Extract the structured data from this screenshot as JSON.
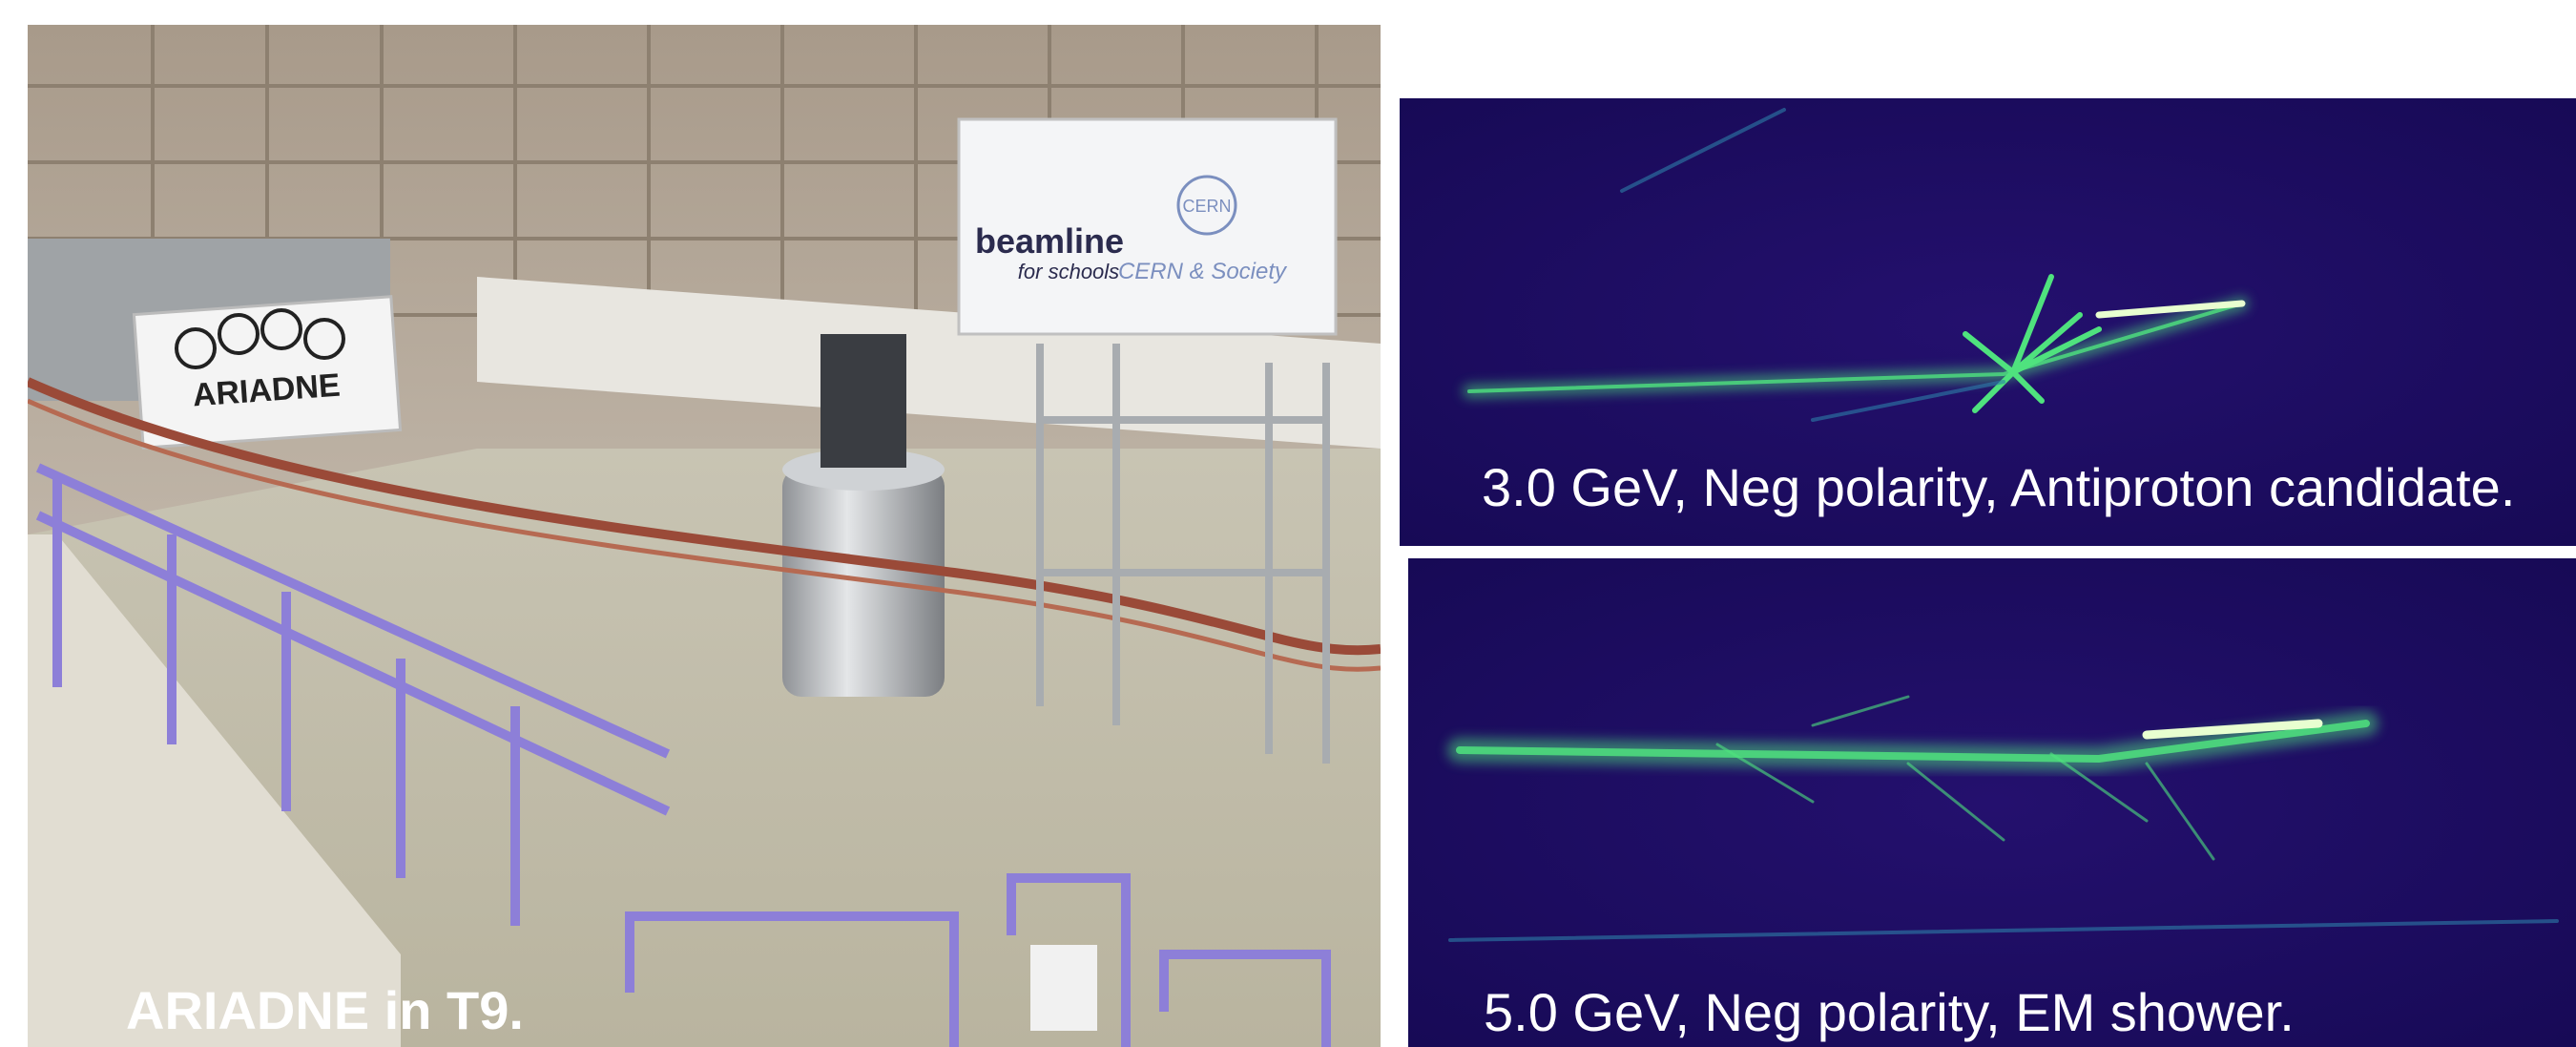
{
  "photo": {
    "caption": "ARIADNE in T9.",
    "signs": {
      "beamline": "beamline",
      "beamline_sub": "for schools",
      "cern": "CERN",
      "cern_society": "CERN & Society",
      "ariadne": "ARIADNE"
    }
  },
  "events": [
    {
      "caption": "3.0 GeV, Neg polarity, Antiproton candidate."
    },
    {
      "caption": "5.0 GeV, Neg polarity, EM shower."
    }
  ]
}
